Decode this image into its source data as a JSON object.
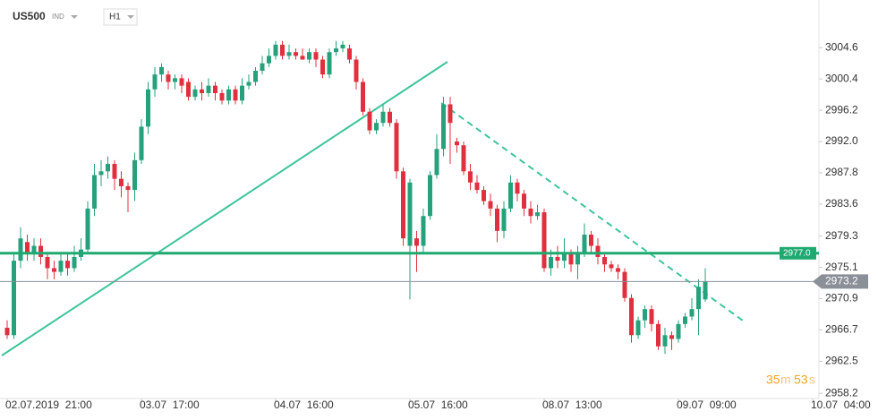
{
  "header": {
    "symbol": "US500",
    "market": "IND",
    "timeframe": "H1"
  },
  "countdown": [
    "35",
    "m",
    "53",
    "s"
  ],
  "chart_data": {
    "type": "candlestick",
    "open": [
      2967,
      2966,
      2976,
      2978.5,
      2977,
      2978,
      2976.5,
      2975,
      2974.5,
      2976,
      2975,
      2976.5,
      2977.5,
      2983,
      2987.5,
      2988,
      2989,
      2987,
      2986,
      2985.5,
      2989.5,
      2994,
      2999,
      3001,
      3001,
      3000,
      3000.5,
      3000,
      2998,
      2999,
      2998.5,
      2999.5,
      2998.5,
      2997.5,
      2999,
      2997.5,
      2999.5,
      3000,
      3001.5,
      3002.5,
      3003.5,
      3005,
      3003.5,
      3004,
      3003.5,
      3003,
      3004,
      3003,
      3001,
      3004,
      3004.5,
      3004.5,
      3003,
      3000,
      2996,
      2993.5,
      2994.5,
      2996,
      2994.5,
      2988,
      2978,
      2979,
      2978,
      2982,
      2987.5,
      2991,
      2997,
      2992,
      2991.5,
      2988,
      2986.5,
      2985.5,
      2984,
      2983,
      2980,
      2983,
      2986.5,
      2985,
      2983,
      2982,
      2982.5,
      2975,
      2976.5,
      2976,
      2977,
      2975.5,
      2977,
      2979.5,
      2978,
      2976.5,
      2975.5,
      2975,
      2974.5,
      2971,
      2966,
      2968,
      2969.5,
      2967.5,
      2964.5,
      2966,
      2965.5,
      2967.5,
      2968.5,
      2969.5,
      2970.8
    ],
    "high": [
      2968,
      2977,
      2980.5,
      2979.5,
      2979,
      2979,
      2977,
      2976,
      2977,
      2977,
      2978,
      2979,
      2984,
      2989,
      2989.5,
      2990,
      2989.5,
      2988,
      2986.5,
      2990.5,
      2995,
      3000,
      3002,
      3002.5,
      3001.5,
      3001,
      3001,
      3000.5,
      2999.5,
      3000,
      3000.5,
      3000,
      2999,
      2999.5,
      2999.5,
      3000.5,
      3001,
      3002,
      3003.5,
      3004.5,
      3005.5,
      3005.5,
      3005,
      3004.5,
      3004.5,
      3004.5,
      3004.5,
      3003.5,
      3004.5,
      3005.5,
      3005.5,
      3005,
      3003.5,
      3000.5,
      2996.5,
      2995,
      2997,
      2996.5,
      2995,
      2988.5,
      2987,
      2980,
      2983,
      2988,
      2993,
      2998,
      2998,
      2992.5,
      2992,
      2989,
      2987.5,
      2986,
      2985,
      2983.5,
      2984,
      2987.5,
      2987,
      2985.5,
      2984,
      2983.5,
      2983,
      2977.5,
      2978,
      2979,
      2977.5,
      2978,
      2981,
      2980,
      2979,
      2977,
      2976,
      2975.5,
      2975,
      2971.5,
      2968.5,
      2970,
      2970,
      2968,
      2967,
      2966.5,
      2968,
      2969,
      2971,
      2973.5,
      2975
    ],
    "low": [
      2965.5,
      2965.5,
      2975,
      2976,
      2976,
      2975.5,
      2973.5,
      2973.5,
      2974,
      2974,
      2974.5,
      2976,
      2977,
      2982,
      2986,
      2987,
      2985.5,
      2984.5,
      2982.5,
      2984,
      2989,
      2993,
      2998,
      3000,
      2999,
      2999,
      2998.5,
      2997.5,
      2997.5,
      2997.5,
      2998,
      2997.5,
      2997,
      2997,
      2997,
      2997,
      2999,
      2999.5,
      3001,
      3002,
      3003,
      3003,
      3003,
      3003,
      3003,
      3002.5,
      3002,
      3000.5,
      3000.5,
      3003.5,
      3004,
      3002.5,
      2999,
      2995.5,
      2993,
      2993,
      2994,
      2994,
      2987,
      2978,
      2970.8,
      2974.5,
      2977,
      2981.5,
      2987,
      2990,
      2989,
      2990.5,
      2987.5,
      2985.5,
      2985,
      2983.5,
      2982,
      2978.5,
      2979,
      2982.5,
      2984,
      2982,
      2981,
      2981.5,
      2974.5,
      2974,
      2975,
      2975,
      2974.5,
      2973.5,
      2976.5,
      2977,
      2975.5,
      2974.5,
      2974.5,
      2973.5,
      2970.5,
      2965,
      2965.5,
      2967,
      2966.5,
      2964,
      2963.5,
      2964,
      2965,
      2967,
      2968,
      2966,
      2970.5
    ],
    "close": [
      2966,
      2976,
      2979,
      2977,
      2978,
      2976.5,
      2975,
      2974.5,
      2976,
      2975,
      2976.5,
      2977.5,
      2983,
      2987.5,
      2988,
      2989,
      2987,
      2986,
      2985.5,
      2989.5,
      2994,
      2999,
      3001,
      3002,
      3000,
      3000.5,
      2999.5,
      2998,
      2999,
      2998.5,
      2999.5,
      2998.5,
      2997.5,
      2999,
      2997.5,
      2999.5,
      3000,
      3001.5,
      3002.5,
      3003.5,
      3005,
      3003.5,
      3004,
      3003.5,
      3003,
      3004,
      3003,
      3001,
      3004,
      3004.5,
      3005,
      3003,
      3000,
      2996,
      2993.5,
      2994.5,
      2996,
      2994.5,
      2988,
      2979,
      2986.5,
      2978,
      2982,
      2987.5,
      2991,
      2997,
      2994.5,
      2991.5,
      2988,
      2986.5,
      2985.5,
      2984,
      2983,
      2980,
      2983,
      2986.5,
      2985,
      2983,
      2982,
      2982.5,
      2975,
      2976.5,
      2976,
      2977,
      2975.5,
      2977,
      2979.5,
      2978,
      2976.5,
      2975.5,
      2975,
      2974.5,
      2971,
      2966,
      2968,
      2969.5,
      2967.5,
      2964.5,
      2966,
      2965.5,
      2967.5,
      2968.5,
      2969.5,
      2972.5,
      2973.2
    ],
    "up_color": "#26a17b",
    "down_color": "#e0303f",
    "ylim": [
      2957.5,
      3011
    ],
    "yticks": [
      3004.6,
      3000.4,
      2996.2,
      {
        "value": 2992,
        "label": "2992.0"
      },
      2987.8,
      2983.6,
      2979.3,
      2975.1,
      2970.9,
      2966.7,
      2962.5,
      2958.2
    ],
    "xlim": [
      -1,
      121
    ],
    "xticks": [
      {
        "value": 0,
        "label": "02.07.2019  21:00"
      },
      {
        "value": 20,
        "label": "03.07  17:00"
      },
      {
        "value": 40,
        "label": "04.07  16:00"
      },
      {
        "value": 60,
        "label": "05.07  16:00"
      },
      {
        "value": 80,
        "label": "08.07  13:00"
      },
      {
        "value": 100,
        "label": "09.07  09:00"
      },
      {
        "value": 120,
        "label": "10.07  04:00"
      }
    ],
    "levels": [
      {
        "value": 2977,
        "label": "2977.0",
        "color": "#1fa971"
      }
    ],
    "last_price": {
      "value": 2973.2,
      "label": "2973.2",
      "color": "#8a8f98"
    }
  }
}
